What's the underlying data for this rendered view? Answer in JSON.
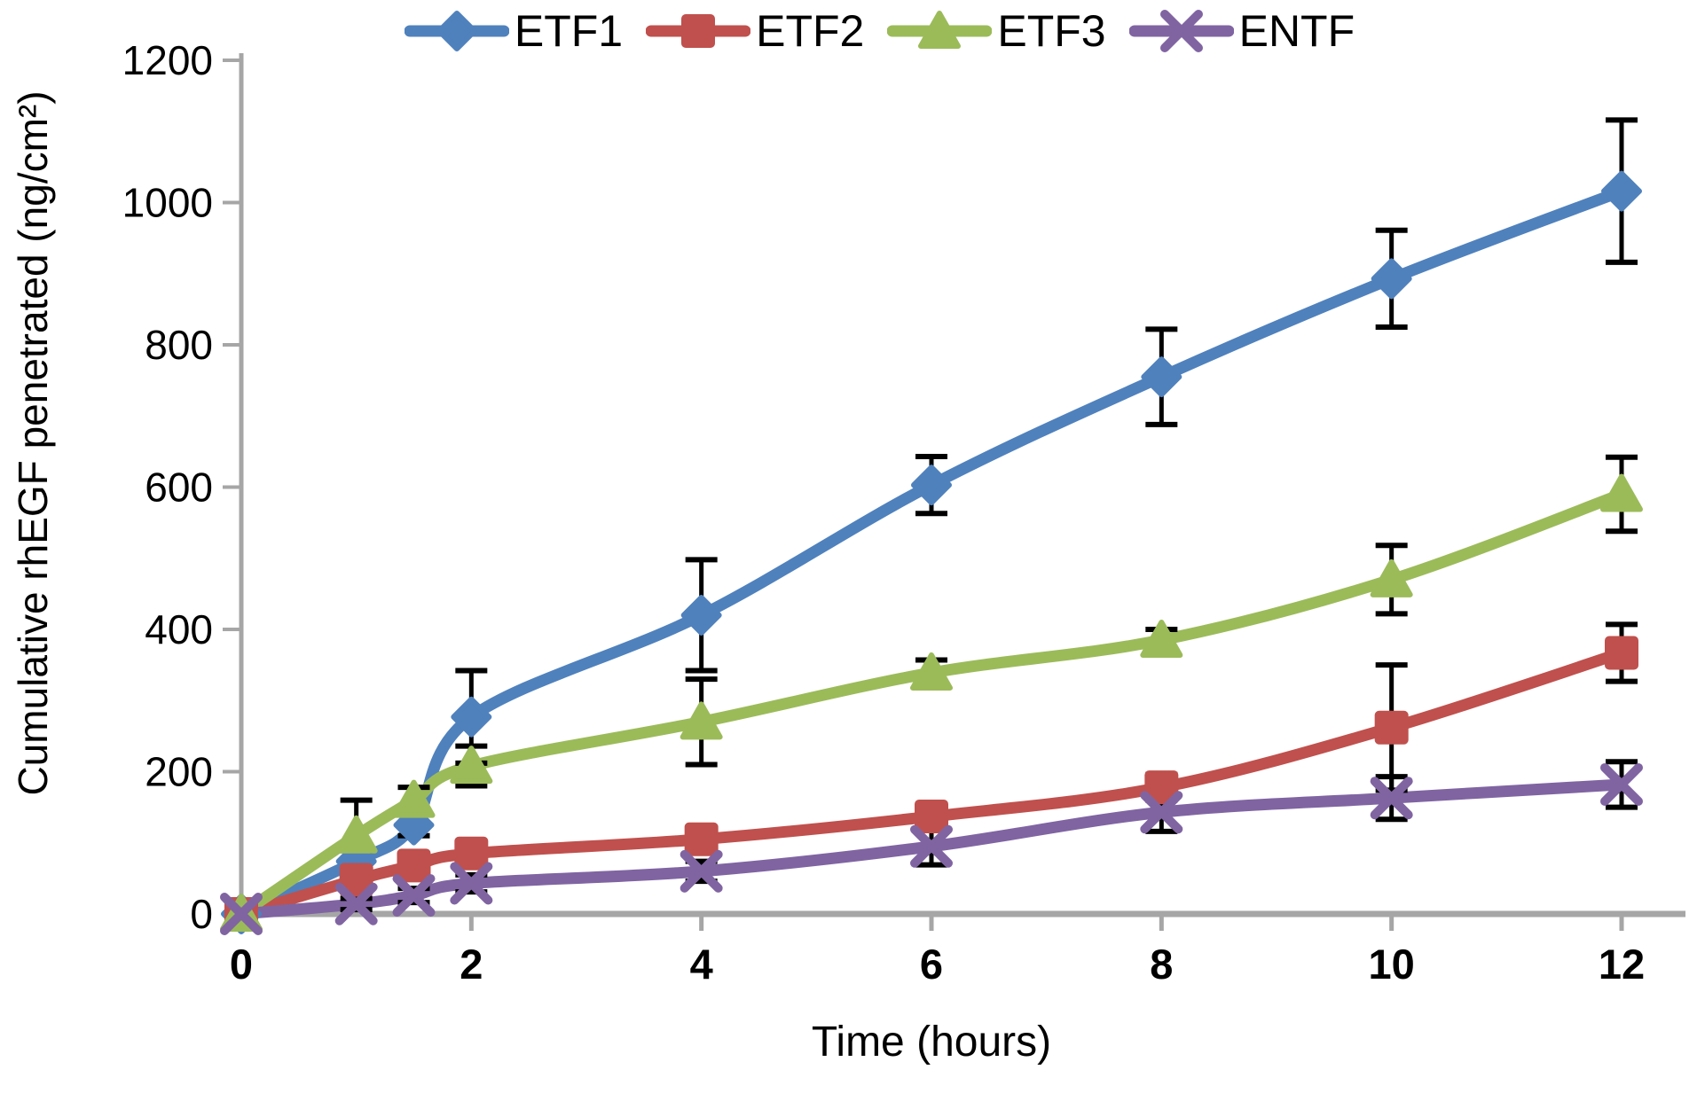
{
  "chart_data": {
    "type": "line",
    "title": "",
    "xlabel": "Time (hours)",
    "ylabel": "Cumulative rhEGF penetrated (ng/cm²)",
    "x": [
      0,
      1,
      1.5,
      2,
      4,
      6,
      8,
      10,
      12
    ],
    "x_ticks": [
      0,
      2,
      4,
      6,
      8,
      10,
      12
    ],
    "y_ticks": [
      0,
      200,
      400,
      600,
      800,
      1000,
      1200
    ],
    "xlim": [
      0,
      12
    ],
    "ylim": [
      0,
      1200
    ],
    "grid": false,
    "legend_position": "top",
    "smooth_lines": true,
    "axis_color": "#a6a6a6",
    "error_bar_color": "#000000",
    "series": [
      {
        "name": "ETF1",
        "color": "#4f81bd",
        "marker": "diamond",
        "values": [
          0,
          74,
          125,
          277,
          420,
          603,
          755,
          893,
          1016
        ],
        "errors": [
          0,
          15,
          15,
          65,
          78,
          40,
          67,
          68,
          100
        ]
      },
      {
        "name": "ETF2",
        "color": "#c0504d",
        "marker": "square",
        "values": [
          0,
          48,
          68,
          85,
          105,
          137,
          178,
          262,
          367
        ],
        "errors": [
          0,
          10,
          12,
          14,
          15,
          15,
          18,
          88,
          40
        ]
      },
      {
        "name": "ETF3",
        "color": "#9bbb59",
        "marker": "triangle",
        "values": [
          0,
          110,
          160,
          208,
          270,
          339,
          385,
          470,
          590
        ],
        "errors": [
          0,
          50,
          18,
          28,
          60,
          18,
          15,
          48,
          52
        ]
      },
      {
        "name": "ENTF",
        "color": "#8064a2",
        "marker": "x",
        "values": [
          0,
          14,
          26,
          43,
          60,
          95,
          143,
          163,
          182
        ],
        "errors": [
          0,
          8,
          10,
          12,
          14,
          26,
          27,
          30,
          32
        ]
      }
    ]
  }
}
